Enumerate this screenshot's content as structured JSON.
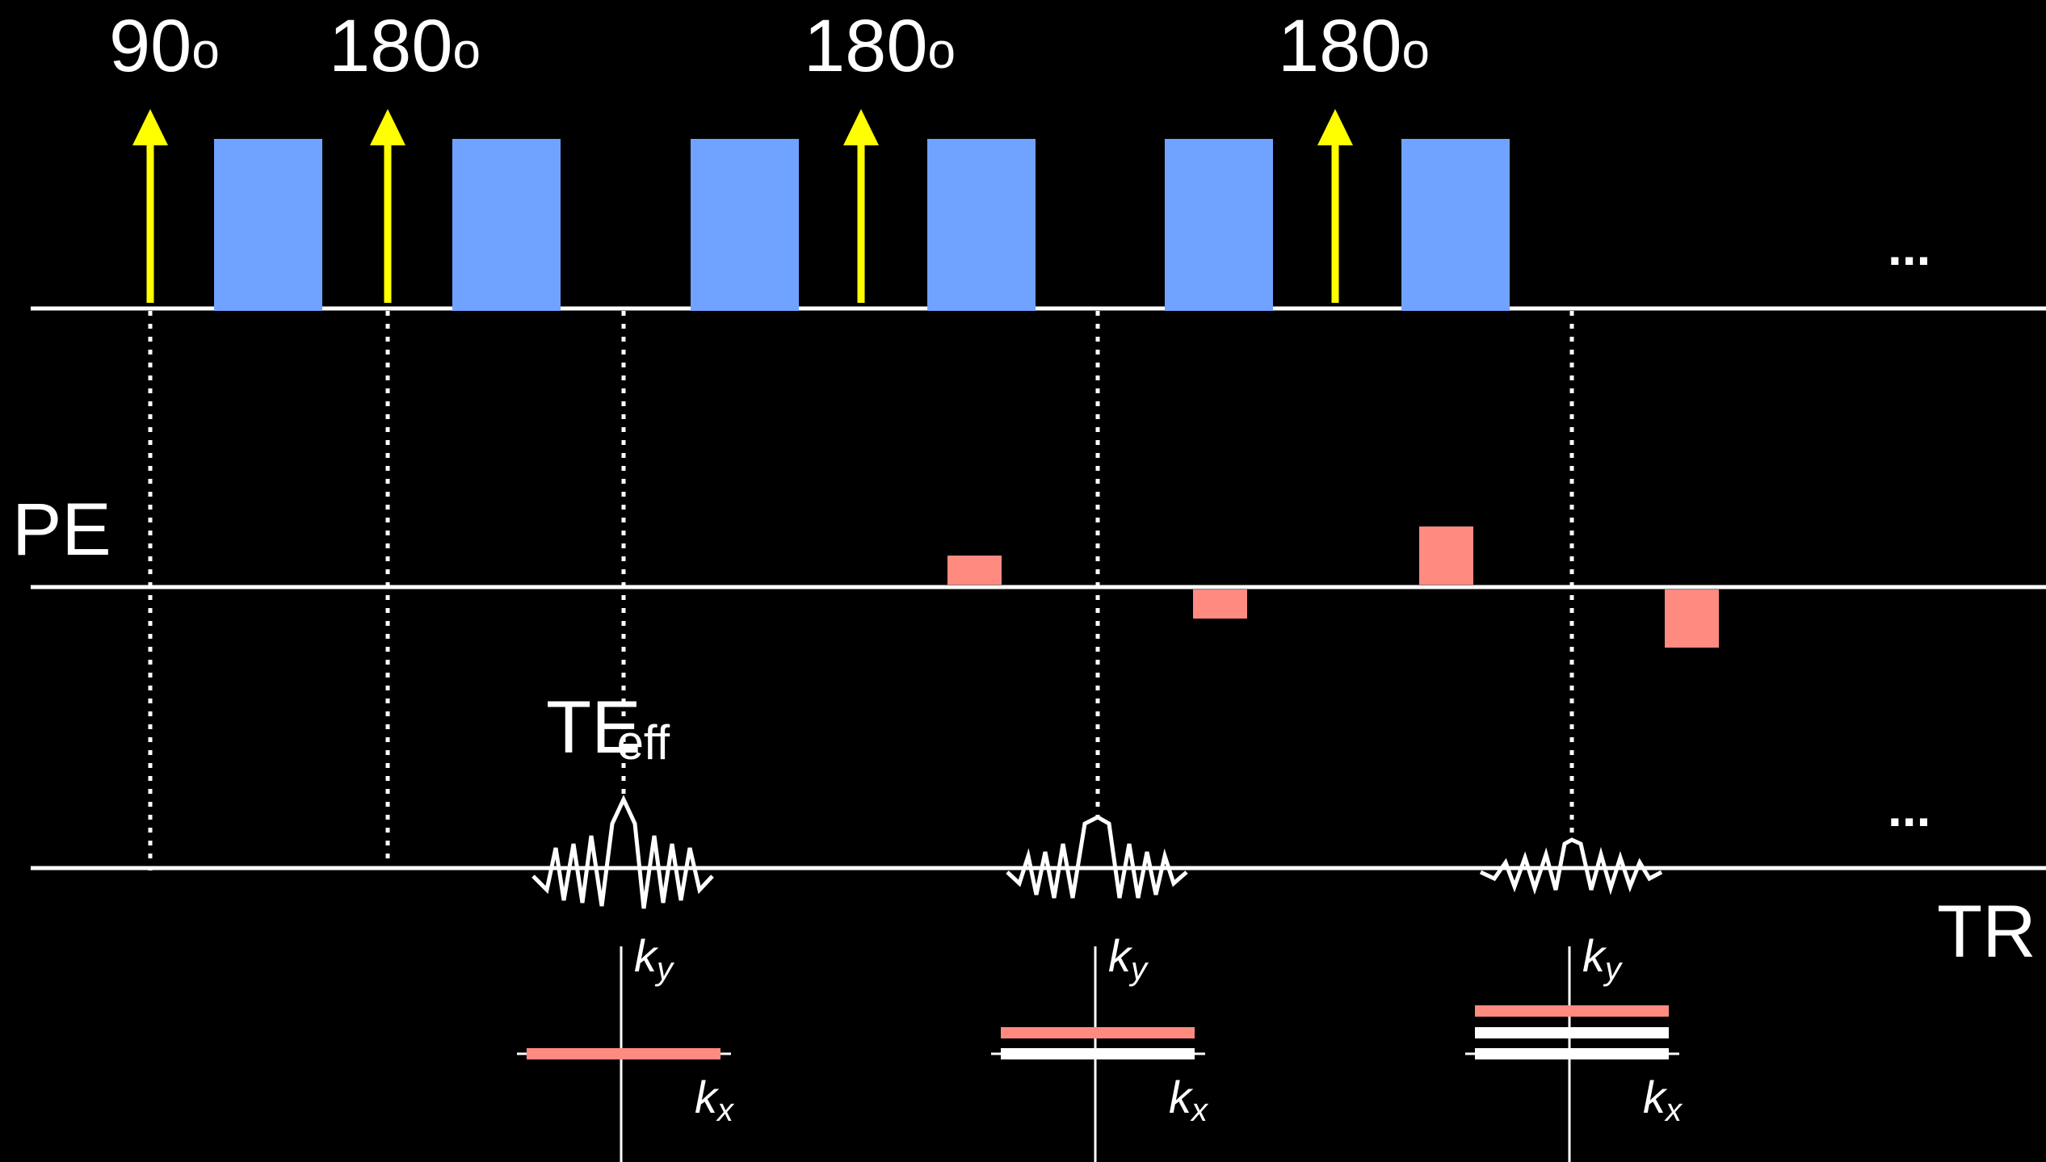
{
  "rf_labels": [
    {
      "value": "90",
      "sup": "o"
    },
    {
      "value": "180",
      "sup": "o"
    },
    {
      "value": "180",
      "sup": "o"
    },
    {
      "value": "180",
      "sup": "o"
    }
  ],
  "pe_label": "PE",
  "te_label": {
    "main": "TE",
    "sub": "eff"
  },
  "tr_label": "TR",
  "ellipsis": "...",
  "kspace_labels": {
    "ky": "k",
    "ky_sub": "y",
    "kx": "k",
    "kx_sub": "x"
  },
  "colors": {
    "background": "#000000",
    "rf_arrow": "#ffff00",
    "refocus_gradient": "#6fa3ff",
    "phase_encode": "#ff8a80",
    "lines": "#ffffff"
  },
  "phase_encode_steps": [
    1,
    -1,
    2,
    -2
  ]
}
